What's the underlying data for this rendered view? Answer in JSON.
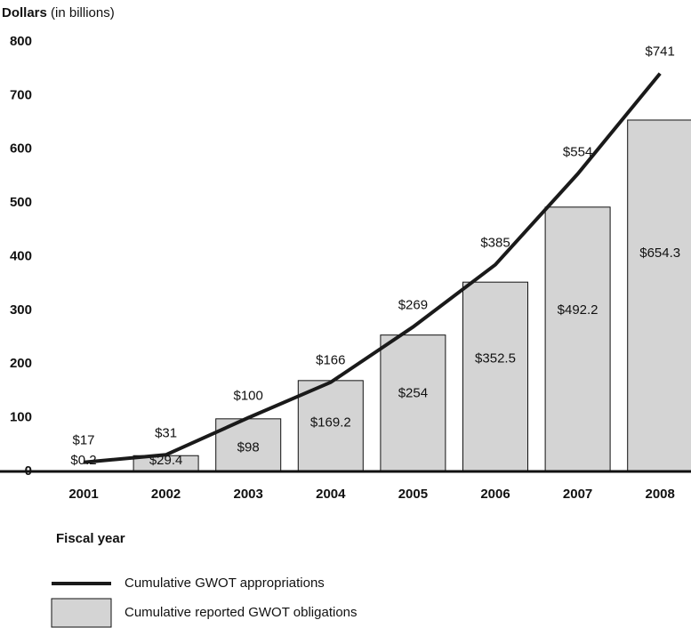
{
  "chart_data": {
    "type": "bar_line",
    "y_label": "Dollars",
    "y_label_note": "(in billions)",
    "x_label": "Fiscal year",
    "categories": [
      "2001",
      "2002",
      "2003",
      "2004",
      "2005",
      "2006",
      "2007",
      "2008"
    ],
    "series": [
      {
        "name": "Cumulative GWOT appropriations",
        "kind": "line",
        "color": "#1a1a1a",
        "values": [
          17,
          31,
          100,
          166,
          269,
          385,
          554,
          741
        ],
        "value_labels": [
          "$17",
          "$31",
          "$100",
          "$166",
          "$269",
          "$385",
          "$554",
          "$741"
        ]
      },
      {
        "name": "Cumulative reported GWOT obligations",
        "kind": "bar",
        "color": "#d4d4d4",
        "values": [
          0.2,
          29.4,
          98,
          169.2,
          254,
          352.5,
          492.2,
          654.3
        ],
        "value_labels": [
          "$0.2",
          "$29.4",
          "$98",
          "$169.2",
          "$254",
          "$352.5",
          "$492.2",
          "$654.3"
        ]
      }
    ],
    "ylim": [
      0,
      800
    ],
    "yticks": [
      0,
      100,
      200,
      300,
      400,
      500,
      600,
      700,
      800
    ]
  }
}
